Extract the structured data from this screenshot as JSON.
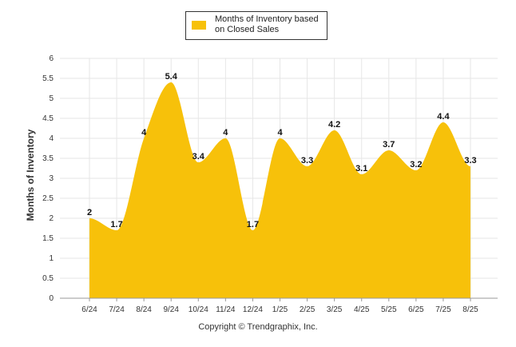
{
  "legend": {
    "label": "Months of Inventory based on Closed Sales"
  },
  "footer": {
    "copyright": "Copyright © Trendgraphix, Inc."
  },
  "colors": {
    "series": "#F7C10A",
    "grid": "#e6e6e6",
    "axis_text": "#333333"
  },
  "chart_data": {
    "type": "area",
    "ylabel": "Months of Inventory",
    "ylim": [
      0,
      6
    ],
    "y_ticks": [
      "0",
      "0.5",
      "1",
      "1.5",
      "2",
      "2.5",
      "3",
      "3.5",
      "4",
      "4.5",
      "5",
      "5.5",
      "6"
    ],
    "grid": true,
    "legend_position": "top-center",
    "categories": [
      "6/24",
      "7/24",
      "8/24",
      "9/24",
      "10/24",
      "11/24",
      "12/24",
      "1/25",
      "2/25",
      "3/25",
      "4/25",
      "5/25",
      "6/25",
      "7/25",
      "8/25"
    ],
    "series": [
      {
        "name": "Months of Inventory based on Closed Sales",
        "values": [
          2,
          1.7,
          4,
          5.4,
          3.4,
          4,
          1.7,
          4,
          3.3,
          4.2,
          3.1,
          3.7,
          3.2,
          4.4,
          3.3
        ],
        "labels": [
          "2",
          "1.7",
          "4",
          "5.4",
          "3.4",
          "4",
          "1.7",
          "4",
          "3.3",
          "4.2",
          "3.1",
          "3.7",
          "3.2",
          "4.4",
          "3.3"
        ]
      }
    ]
  }
}
